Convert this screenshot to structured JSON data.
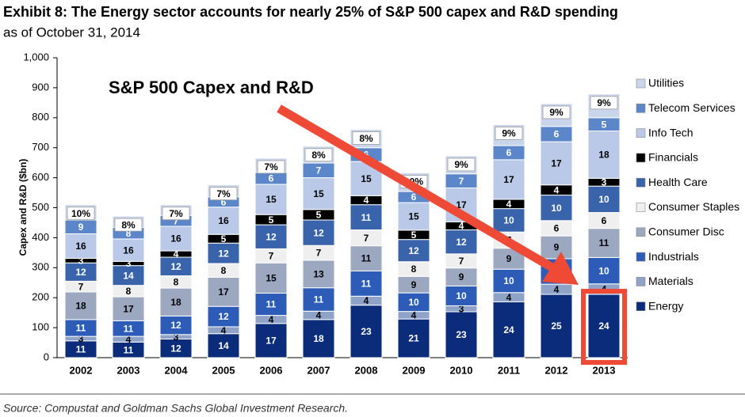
{
  "chart_data": {
    "type": "stacked_bar",
    "title": "Exhibit 8: The Energy sector accounts for nearly 25% of S&P 500 capex and R&D spending",
    "subtitle": "as of October 31, 2014",
    "y_label": "Capex and R&D ($bn)",
    "annotation": "S&P 500 Capex and R&D",
    "source": "Source: Compustat and Goldman Sachs Global Investment Research.",
    "categories": [
      "2002",
      "2003",
      "2004",
      "2005",
      "2006",
      "2007",
      "2008",
      "2009",
      "2010",
      "2011",
      "2012",
      "2013"
    ],
    "ylim": [
      0,
      1000
    ],
    "yticks": [
      0,
      100,
      200,
      300,
      400,
      500,
      600,
      700,
      800,
      900,
      {
        "value": 1000,
        "label": "1,000"
      }
    ],
    "series": [
      {
        "name": "Energy",
        "color": "#0b2c7a",
        "values": [
          56,
          52,
          62,
          80,
          114,
          127,
          175,
          129,
          153,
          186,
          211,
          211
        ],
        "shares": [
          11,
          11,
          12,
          14,
          17,
          18,
          23,
          21,
          23,
          24,
          25,
          24
        ]
      },
      {
        "name": "Materials",
        "color": "#8fa3c9",
        "values": [
          15,
          19,
          15,
          23,
          27,
          28,
          30,
          25,
          20,
          31,
          34,
          35
        ],
        "shares": [
          3,
          4,
          3,
          4,
          4,
          4,
          4,
          4,
          3,
          4,
          4,
          4
        ]
      },
      {
        "name": "Industrials",
        "color": "#2c5cb8",
        "values": [
          56,
          52,
          62,
          68,
          74,
          78,
          84,
          62,
          66,
          78,
          85,
          88
        ],
        "shares": [
          11,
          11,
          12,
          12,
          11,
          11,
          11,
          10,
          10,
          10,
          10,
          10
        ]
      },
      {
        "name": "Consumer Disc",
        "color": "#9ba8c0",
        "values": [
          92,
          80,
          93,
          97,
          101,
          92,
          84,
          55,
          60,
          70,
          76,
          97
        ],
        "shares": [
          18,
          17,
          18,
          17,
          15,
          13,
          11,
          9,
          9,
          9,
          9,
          11
        ]
      },
      {
        "name": "Consumer Staples",
        "color": "#efefef",
        "values": [
          36,
          38,
          41,
          46,
          47,
          49,
          53,
          49,
          47,
          54,
          51,
          53
        ],
        "shares": [
          7,
          8,
          8,
          8,
          7,
          7,
          7,
          8,
          7,
          7,
          6,
          6
        ]
      },
      {
        "name": "Health Care",
        "color": "#3963aa",
        "values": [
          61,
          66,
          62,
          68,
          80,
          85,
          84,
          74,
          80,
          78,
          85,
          88
        ],
        "shares": [
          12,
          14,
          12,
          12,
          12,
          12,
          11,
          12,
          12,
          10,
          10,
          10
        ]
      },
      {
        "name": "Financials",
        "color": "#000000",
        "values": [
          15,
          14,
          21,
          29,
          34,
          35,
          30,
          31,
          27,
          31,
          34,
          26
        ],
        "shares": [
          3,
          3,
          4,
          5,
          5,
          5,
          4,
          5,
          4,
          4,
          4,
          3
        ]
      },
      {
        "name": "Info Tech",
        "color": "#b9c9e7",
        "values": [
          82,
          75,
          82,
          91,
          101,
          106,
          114,
          92,
          113,
          132,
          144,
          158
        ],
        "shares": [
          16,
          16,
          16,
          16,
          15,
          15,
          15,
          15,
          17,
          17,
          17,
          18
        ]
      },
      {
        "name": "Telecom Services",
        "color": "#5b86c9",
        "values": [
          46,
          38,
          36,
          34,
          40,
          49,
          46,
          37,
          47,
          47,
          51,
          44
        ],
        "shares": [
          9,
          8,
          7,
          6,
          6,
          7,
          6,
          6,
          7,
          6,
          6,
          5
        ]
      },
      {
        "name": "Utilities",
        "color": "#c9d5eb",
        "values": [
          51,
          38,
          36,
          40,
          47,
          56,
          61,
          62,
          60,
          70,
          76,
          79
        ],
        "share_labels": [
          "10%",
          "8%",
          "7%",
          "7%",
          "7%",
          "8%",
          "8%",
          "10%",
          "9%",
          "9%",
          "9%",
          "9%"
        ]
      }
    ]
  }
}
